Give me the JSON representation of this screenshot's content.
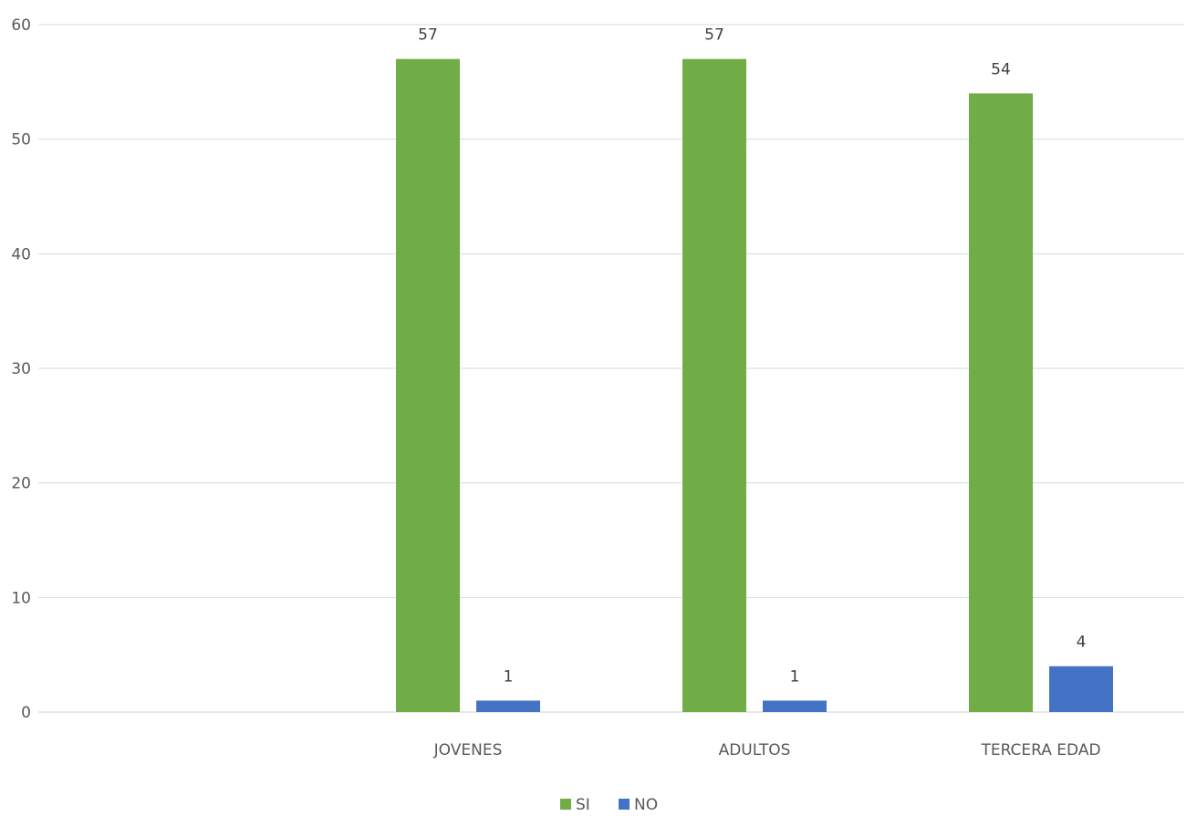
{
  "chart_data": {
    "type": "bar",
    "title": "",
    "xlabel": "",
    "ylabel": "",
    "categories": [
      "",
      "JOVENES",
      "ADULTOS",
      "TERCERA EDAD"
    ],
    "series": [
      {
        "name": "SI",
        "color": "#70ad47",
        "values": [
          null,
          57,
          57,
          54
        ]
      },
      {
        "name": "NO",
        "color": "#4472c4",
        "values": [
          null,
          1,
          1,
          4
        ]
      }
    ],
    "ylim": [
      0,
      60
    ],
    "yticks": [
      0,
      10,
      20,
      30,
      40,
      50,
      60
    ],
    "grid": true,
    "data_labels": true,
    "legend_position": "bottom"
  }
}
